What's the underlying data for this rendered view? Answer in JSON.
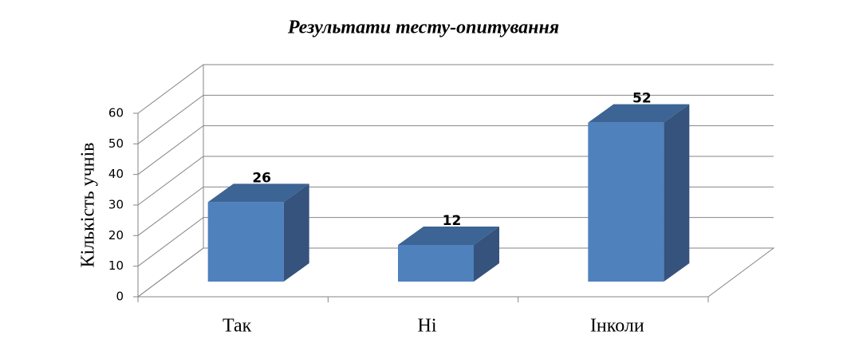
{
  "chart_data": {
    "type": "bar",
    "title": "Результати тесту-опитування",
    "y_label": "Кількість учнів",
    "categories": [
      "Так",
      "Ні",
      "Інколи"
    ],
    "values": [
      26,
      12,
      52
    ],
    "color": "#4f81bd",
    "ylim": [
      0,
      60
    ],
    "yticks": [
      0,
      10,
      20,
      30,
      40,
      50,
      60
    ],
    "grid": true
  }
}
